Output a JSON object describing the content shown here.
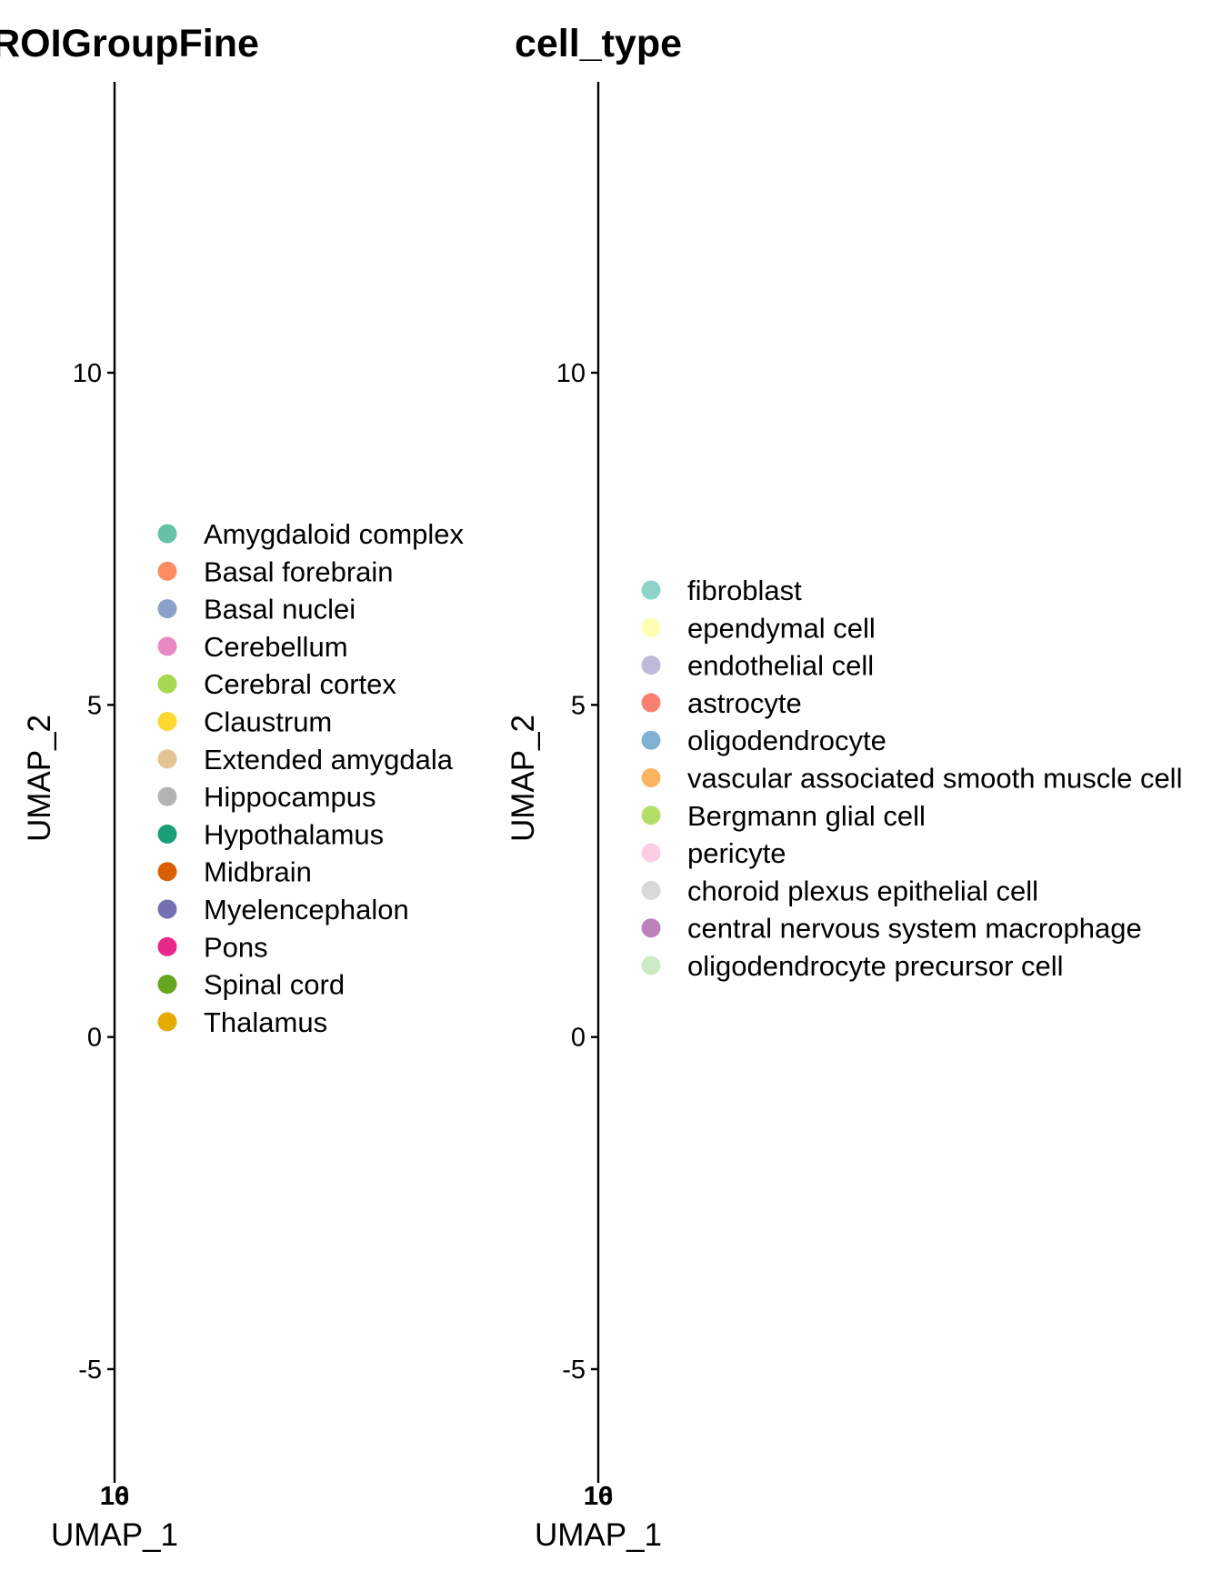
{
  "chart_data": [
    {
      "type": "scatter",
      "title": "ROIGroupFine",
      "xlabel": "UMAP_1",
      "ylabel": "UMAP_2",
      "ylim": [
        -6.8,
        14.1
      ],
      "y_ticks": [
        -5,
        0,
        5,
        10
      ],
      "x_tick_labels": [
        "10",
        "16"
      ],
      "grid": false,
      "legend": {
        "position": "right",
        "entries": [
          {
            "name": "Amygdaloid complex",
            "color": "#66C2A5"
          },
          {
            "name": "Basal forebrain",
            "color": "#FC8D62"
          },
          {
            "name": "Basal nuclei",
            "color": "#8DA0CB"
          },
          {
            "name": "Cerebellum",
            "color": "#E78AC3"
          },
          {
            "name": "Cerebral cortex",
            "color": "#A6D854"
          },
          {
            "name": "Claustrum",
            "color": "#FFD92F"
          },
          {
            "name": "Extended amygdala",
            "color": "#E5C494"
          },
          {
            "name": "Hippocampus",
            "color": "#B3B3B3"
          },
          {
            "name": "Hypothalamus",
            "color": "#1B9E77"
          },
          {
            "name": "Midbrain",
            "color": "#D95F02"
          },
          {
            "name": "Myelencephalon",
            "color": "#7570B3"
          },
          {
            "name": "Pons",
            "color": "#E7298A"
          },
          {
            "name": "Spinal cord",
            "color": "#66A61E"
          },
          {
            "name": "Thalamus",
            "color": "#E6AB02"
          }
        ]
      }
    },
    {
      "type": "scatter",
      "title": "cell_type",
      "xlabel": "UMAP_1",
      "ylabel": "UMAP_2",
      "ylim": [
        -6.8,
        14.1
      ],
      "y_ticks": [
        -5,
        0,
        5,
        10
      ],
      "x_tick_labels": [
        "10",
        "16"
      ],
      "grid": false,
      "legend": {
        "position": "right",
        "entries": [
          {
            "name": "fibroblast",
            "color": "#8DD3C7"
          },
          {
            "name": "ependymal cell",
            "color": "#FFFFB3"
          },
          {
            "name": "endothelial cell",
            "color": "#BEBADA"
          },
          {
            "name": "astrocyte",
            "color": "#FB8072"
          },
          {
            "name": "oligodendrocyte",
            "color": "#80B1D3"
          },
          {
            "name": "vascular associated smooth muscle cell",
            "color": "#FDB462"
          },
          {
            "name": "Bergmann glial cell",
            "color": "#B3DE69"
          },
          {
            "name": "pericyte",
            "color": "#FCCDE5"
          },
          {
            "name": "choroid plexus epithelial cell",
            "color": "#D9D9D9"
          },
          {
            "name": "central nervous system macrophage",
            "color": "#BC80BD"
          },
          {
            "name": "oligodendrocyte precursor cell",
            "color": "#CCEBC5"
          }
        ]
      }
    }
  ]
}
